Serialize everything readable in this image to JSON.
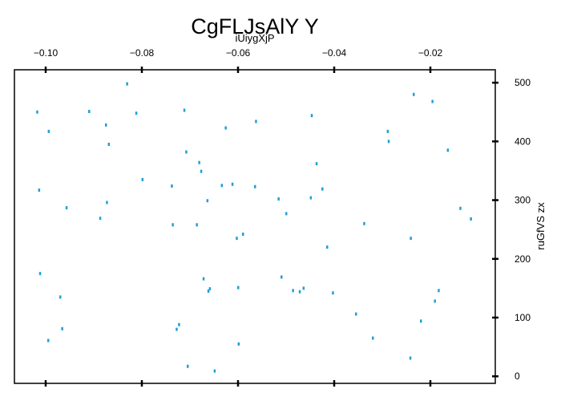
{
  "chart_data": {
    "type": "scatter",
    "title": "CgFLJsAlY Y",
    "xlabel": "iUiygXjP",
    "ylabel": "ruGfVS zx",
    "x_axis_position": "top",
    "y_axis_position": "right",
    "xlim": [
      -0.1065,
      -0.0065
    ],
    "ylim": [
      -12,
      522
    ],
    "xticks": [
      -0.1,
      -0.08,
      -0.06,
      -0.04,
      -0.02
    ],
    "xtick_labels": [
      "−0.10",
      "−0.08",
      "−0.06",
      "−0.04",
      "−0.02"
    ],
    "yticks": [
      0,
      100,
      200,
      300,
      400,
      500
    ],
    "ytick_labels": [
      "0",
      "100",
      "200",
      "300",
      "400",
      "500"
    ],
    "grid": false,
    "marker_color": "#1f9fd8",
    "series": [
      {
        "points": [
          [
            -0.1018,
            450
          ],
          [
            -0.1014,
            317
          ],
          [
            -0.1012,
            175
          ],
          [
            -0.0995,
            61
          ],
          [
            -0.0994,
            417
          ],
          [
            -0.097,
            135
          ],
          [
            -0.0966,
            81
          ],
          [
            -0.0957,
            287
          ],
          [
            -0.091,
            451
          ],
          [
            -0.0887,
            269
          ],
          [
            -0.0875,
            428
          ],
          [
            -0.0873,
            296
          ],
          [
            -0.0869,
            395
          ],
          [
            -0.0831,
            498
          ],
          [
            -0.0812,
            448
          ],
          [
            -0.0799,
            335
          ],
          [
            -0.0738,
            324
          ],
          [
            -0.0736,
            258
          ],
          [
            -0.0728,
            80
          ],
          [
            -0.0723,
            88
          ],
          [
            -0.0712,
            453
          ],
          [
            -0.0708,
            382
          ],
          [
            -0.0705,
            17
          ],
          [
            -0.0686,
            258
          ],
          [
            -0.0681,
            364
          ],
          [
            -0.0677,
            349
          ],
          [
            -0.0672,
            166
          ],
          [
            -0.0664,
            299
          ],
          [
            -0.0662,
            145
          ],
          [
            -0.0659,
            149
          ],
          [
            -0.0649,
            9
          ],
          [
            -0.0634,
            325
          ],
          [
            -0.0626,
            423
          ],
          [
            -0.0612,
            327
          ],
          [
            -0.0603,
            235
          ],
          [
            -0.06,
            151
          ],
          [
            -0.0599,
            55
          ],
          [
            -0.059,
            242
          ],
          [
            -0.0563,
            434
          ],
          [
            -0.0565,
            323
          ],
          [
            -0.0516,
            302
          ],
          [
            -0.051,
            169
          ],
          [
            -0.05,
            277
          ],
          [
            -0.0486,
            146
          ],
          [
            -0.0472,
            144
          ],
          [
            -0.0464,
            150
          ],
          [
            -0.0449,
            304
          ],
          [
            -0.0447,
            444
          ],
          [
            -0.0437,
            362
          ],
          [
            -0.0425,
            319
          ],
          [
            -0.0415,
            220
          ],
          [
            -0.0403,
            142
          ],
          [
            -0.0355,
            106
          ],
          [
            -0.0338,
            260
          ],
          [
            -0.032,
            65
          ],
          [
            -0.0289,
            417
          ],
          [
            -0.0287,
            400
          ],
          [
            -0.0242,
            31
          ],
          [
            -0.0241,
            235
          ],
          [
            -0.0235,
            480
          ],
          [
            -0.022,
            94
          ],
          [
            -0.0196,
            468
          ],
          [
            -0.0191,
            128
          ],
          [
            -0.0183,
            146
          ],
          [
            -0.0164,
            385
          ],
          [
            -0.0138,
            286
          ],
          [
            -0.0116,
            268
          ]
        ]
      }
    ]
  }
}
